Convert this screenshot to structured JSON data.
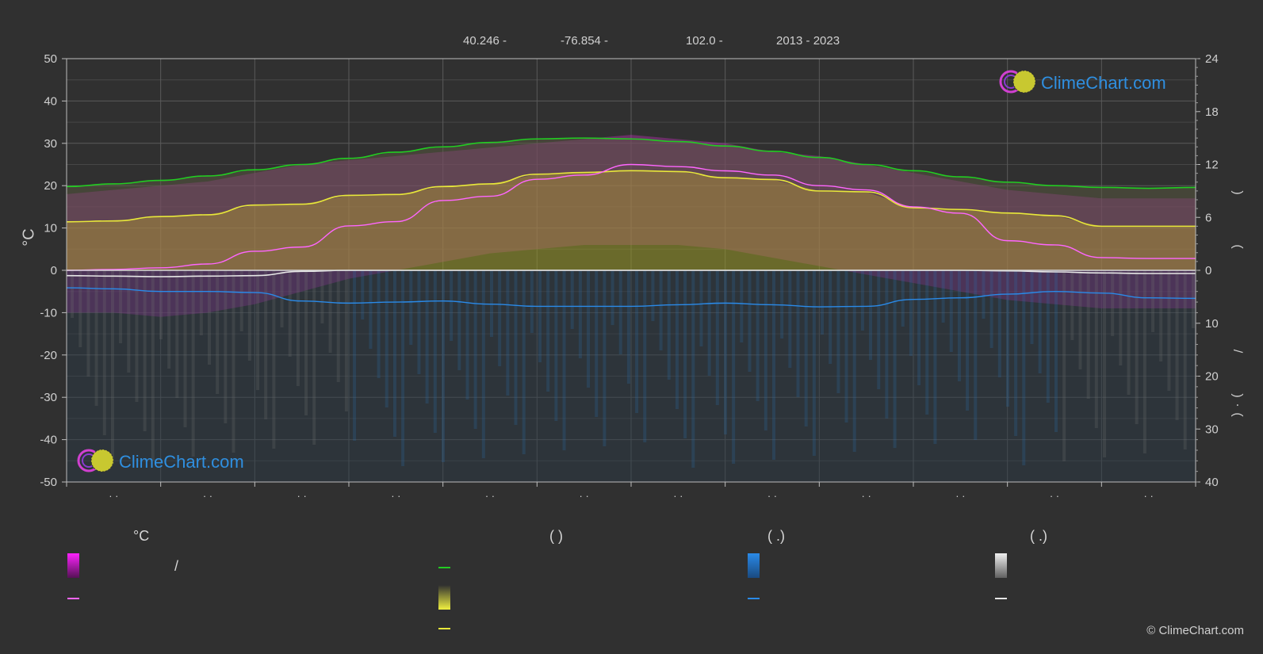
{
  "header": {
    "lat": "40.246 -",
    "lon": "-76.854 -",
    "elev": "102.0 -",
    "years": "2013 - 2023"
  },
  "axis": {
    "left_unit": "°C",
    "right_marks": [
      ")",
      "(",
      "/",
      ")",
      "(",
      "·"
    ]
  },
  "legend": {
    "col1_head": "°C",
    "col2_head": "(          )",
    "col3_head": "(    .)",
    "col4_head": "(    .)",
    "slash": "/"
  },
  "logo": {
    "text": "ClimeChart.com"
  },
  "copyright": "© ClimeChart.com",
  "colors": {
    "background": "#303030",
    "daylight": "#22cc22",
    "sunshine": "#e8e83a",
    "max_temp": "#ff66ff",
    "rain": "#2a8ae8",
    "snow": "#e6e6e6",
    "sunshine_fill": "#a8a828",
    "temp_fill": "#cc33cc"
  },
  "chart_data": {
    "type": "line",
    "x_tick_labels": [
      "· ·",
      "· ·",
      "· ·",
      "· ·",
      "· ·",
      "· ·",
      "· ·",
      "· ·",
      "· ·",
      "· ·",
      "· ·",
      "· ·"
    ],
    "ylim_left": [
      -50,
      50
    ],
    "yticks_left": [
      50,
      40,
      30,
      20,
      10,
      0,
      -10,
      -20,
      -30,
      -40,
      -50
    ],
    "yticks_right_upper": [
      24,
      18,
      12,
      6,
      0
    ],
    "yticks_right_lower": [
      10,
      20,
      30,
      40
    ],
    "ylim_right_upper": [
      0,
      24
    ],
    "ylim_right_lower": [
      0,
      40
    ],
    "grid": true,
    "x": [
      0,
      0.5,
      1,
      1.5,
      2,
      2.5,
      3,
      3.5,
      4,
      4.5,
      5,
      5.5,
      6,
      6.5,
      7,
      7.5,
      8,
      8.5,
      9,
      9.5,
      10,
      10.5,
      11,
      11.5,
      12
    ],
    "series": [
      {
        "key": "daylight",
        "axis": "hours",
        "values": [
          9.5,
          9.8,
          10.2,
          10.7,
          11.4,
          12.0,
          12.7,
          13.4,
          14.0,
          14.5,
          14.9,
          15.0,
          14.9,
          14.6,
          14.1,
          13.5,
          12.8,
          12.0,
          11.3,
          10.6,
          10.0,
          9.6,
          9.4,
          9.3,
          9.4
        ]
      },
      {
        "key": "sunshine",
        "axis": "hours",
        "values": [
          5.5,
          5.6,
          6.1,
          6.3,
          7.4,
          7.5,
          8.5,
          8.6,
          9.5,
          9.8,
          10.9,
          11.1,
          11.3,
          11.2,
          10.5,
          10.3,
          9.0,
          8.9,
          7.1,
          6.9,
          6.5,
          6.2,
          5.0,
          5.0,
          5.0
        ]
      },
      {
        "key": "max_temp_line",
        "axis": "celsius",
        "values": [
          0.0,
          0.2,
          0.6,
          1.5,
          4.5,
          5.5,
          10.5,
          11.5,
          16.5,
          17.5,
          21.5,
          22.5,
          25.0,
          24.5,
          23.5,
          22.5,
          20.0,
          19.0,
          15.0,
          13.5,
          7.0,
          6.0,
          3.0,
          2.8,
          2.8
        ]
      },
      {
        "key": "snow_line",
        "axis": "mm_neg",
        "values": [
          1.0,
          1.1,
          1.2,
          1.1,
          1.0,
          0.2,
          0.0,
          0.0,
          0.0,
          0.0,
          0.0,
          0.0,
          0.0,
          0.0,
          0.0,
          0.0,
          0.0,
          0.0,
          0.0,
          0.0,
          0.1,
          0.3,
          0.5,
          0.6,
          0.6
        ]
      },
      {
        "key": "rain_line",
        "axis": "mm_neg",
        "values": [
          3.3,
          3.5,
          4.0,
          4.0,
          4.2,
          5.8,
          6.2,
          6.0,
          5.8,
          6.4,
          6.8,
          6.8,
          6.8,
          6.5,
          6.2,
          6.5,
          6.9,
          6.8,
          5.5,
          5.2,
          4.5,
          4.0,
          4.3,
          5.2,
          5.3
        ]
      }
    ],
    "temp_band": {
      "upper": [
        18,
        19,
        20,
        21,
        23,
        25,
        26,
        27,
        28,
        29,
        30,
        31,
        32,
        31,
        30,
        28,
        27,
        25,
        23,
        21,
        19,
        18,
        17,
        17,
        17
      ],
      "lower": [
        -10,
        -10,
        -11,
        -10,
        -8,
        -5,
        -2,
        0,
        2,
        4,
        5,
        6,
        6,
        6,
        5,
        3,
        1,
        -1,
        -3,
        -5,
        -7,
        -8,
        -9,
        -9,
        -9
      ]
    }
  }
}
